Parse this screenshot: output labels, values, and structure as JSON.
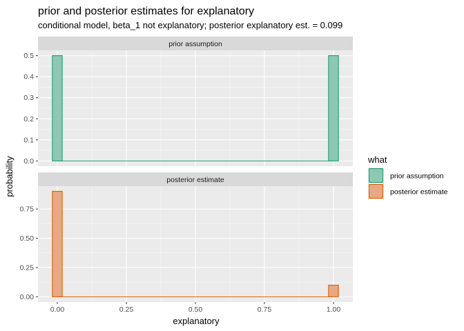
{
  "chart_data": {
    "type": "bar",
    "title": "prior and posterior estimates for explanatory",
    "subtitle": "conditional model, beta_1 not explanatory; posterior explanatory est. = 0.099",
    "xlabel": "explanatory",
    "ylabel": "probability",
    "xlim": [
      -0.07,
      1.07
    ],
    "x_ticks": [
      0.0,
      0.25,
      0.5,
      0.75,
      1.0
    ],
    "x_tick_labels": [
      "0.00",
      "0.25",
      "0.50",
      "0.75",
      "1.00"
    ],
    "bin_width": 0.0357,
    "grid": true,
    "legend_placement": "right",
    "legend_title": "what",
    "panels": [
      {
        "name": "prior assumption",
        "color": "#1B9E77",
        "fill": "#8DC8B5",
        "ylim": [
          -0.025,
          0.525
        ],
        "y_ticks": [
          0.0,
          0.1,
          0.2,
          0.3,
          0.4,
          0.5
        ],
        "y_tick_labels": [
          "0.0",
          "0.1",
          "0.2",
          "0.3",
          "0.4",
          "0.5"
        ],
        "x": [
          0.0,
          1.0
        ],
        "values": [
          0.5,
          0.5
        ]
      },
      {
        "name": "posterior estimate",
        "color": "#D95F02",
        "fill": "#E9A884",
        "ylim": [
          -0.045,
          0.945
        ],
        "y_ticks": [
          0.0,
          0.25,
          0.5,
          0.75
        ],
        "y_tick_labels": [
          "0.00",
          "0.25",
          "0.50",
          "0.75"
        ],
        "x": [
          0.0,
          1.0
        ],
        "values": [
          0.901,
          0.099
        ]
      }
    ]
  }
}
